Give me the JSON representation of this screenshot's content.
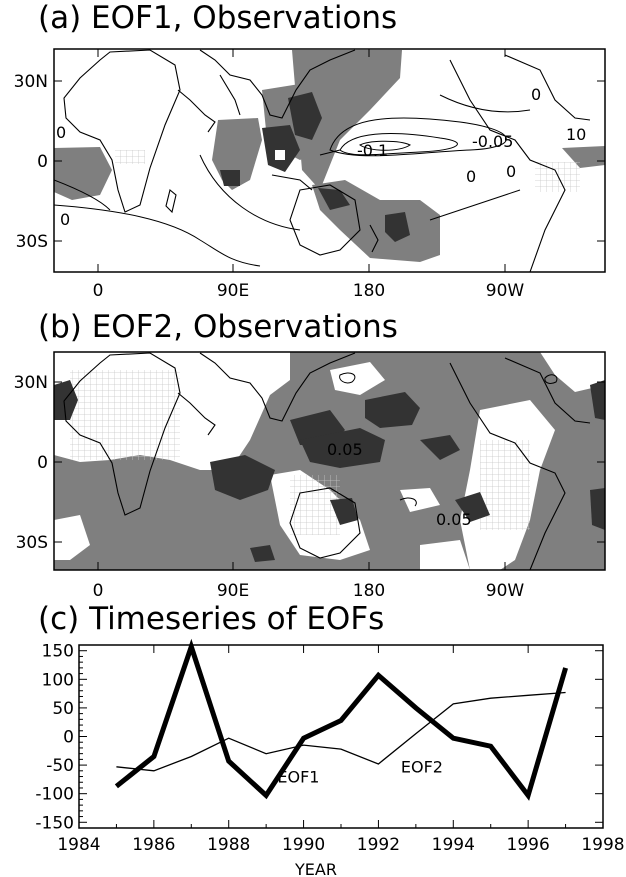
{
  "panel_a": {
    "title": "(a) EOF1, Observations",
    "lat_labels": [
      "30N",
      "0",
      "30S"
    ],
    "lon_labels": [
      "0",
      "90E",
      "180",
      "90W"
    ],
    "contour_labels": [
      "-0.1",
      "-0.05",
      "0",
      "0",
      "0",
      "0",
      "0",
      "10"
    ]
  },
  "panel_b": {
    "title": "(b) EOF2, Observations",
    "lat_labels": [
      "30N",
      "0",
      "30S"
    ],
    "lon_labels": [
      "0",
      "90E",
      "180",
      "90W"
    ],
    "contour_labels": [
      "0.05",
      "0.05"
    ]
  },
  "panel_c": {
    "title": "(c) Timeseries of EOFs"
  },
  "colors": {
    "light_shade": "#7f7f7f",
    "dark_shade": "#333333",
    "land_hatch": "#cfcfcf"
  },
  "chart_data": [
    {
      "type": "map",
      "title": "(a) EOF1, Observations",
      "lat_ticks": [
        "30N",
        "0",
        "30S"
      ],
      "lon_ticks": [
        "0",
        "90E",
        "180",
        "90W"
      ],
      "contour_labels": [
        "-0.1",
        "-0.05",
        "0",
        "0",
        "0",
        "0",
        "0",
        "10"
      ]
    },
    {
      "type": "map",
      "title": "(b) EOF2, Observations",
      "lat_ticks": [
        "30N",
        "0",
        "30S"
      ],
      "lon_ticks": [
        "0",
        "90E",
        "180",
        "90W"
      ],
      "contour_labels": [
        "0.05",
        "0.05"
      ]
    },
    {
      "type": "line",
      "title": "(c) Timeseries of EOFs",
      "xlabel": "YEAR",
      "ylabel": "",
      "xlim": [
        1984,
        1998
      ],
      "ylim": [
        -160,
        160
      ],
      "xticks": [
        1984,
        1986,
        1988,
        1990,
        1992,
        1994,
        1996,
        1998
      ],
      "yticks": [
        150,
        100,
        50,
        0,
        -50,
        -100,
        -150
      ],
      "series": [
        {
          "name": "EOF1",
          "x": [
            1985,
            1986,
            1987,
            1988,
            1989,
            1990,
            1991,
            1992,
            1993,
            1994,
            1995,
            1996,
            1997
          ],
          "y": [
            -87,
            -35,
            157,
            -43,
            -103,
            -3,
            28,
            107,
            50,
            -3,
            -17,
            -103,
            120
          ]
        },
        {
          "name": "EOF2",
          "x": [
            1985,
            1986,
            1987,
            1988,
            1989,
            1990,
            1991,
            1992,
            1993,
            1994,
            1995,
            1996,
            1997
          ],
          "y": [
            -53,
            -60,
            -35,
            -3,
            -30,
            -15,
            -22,
            -48,
            5,
            57,
            67,
            72,
            77
          ]
        }
      ]
    }
  ]
}
